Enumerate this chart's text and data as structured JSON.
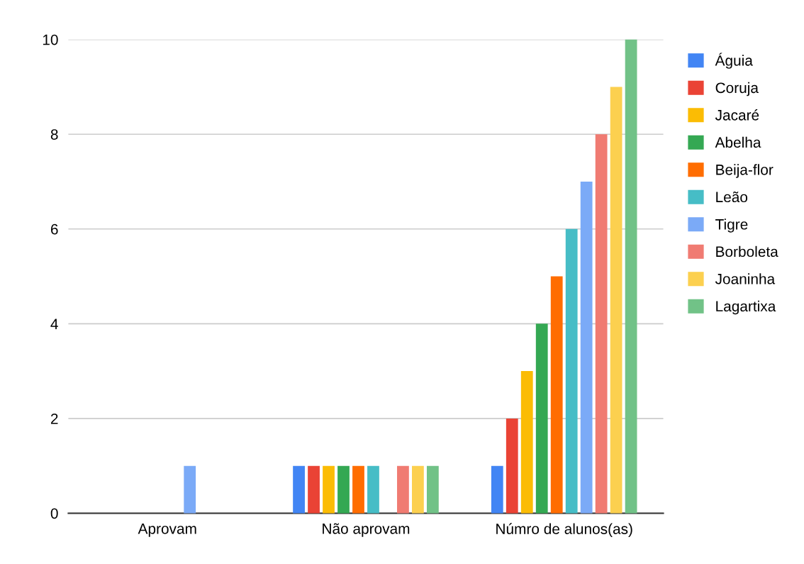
{
  "chart_data": {
    "type": "bar",
    "categories": [
      "Aprovam",
      "Não aprovam",
      "Númro de alunos(as)"
    ],
    "series": [
      {
        "name": "Águia",
        "color": "#4285f4",
        "values": [
          0,
          1,
          1
        ]
      },
      {
        "name": "Coruja",
        "color": "#ea4335",
        "values": [
          0,
          1,
          2
        ]
      },
      {
        "name": "Jacaré",
        "color": "#fbbc04",
        "values": [
          0,
          1,
          3
        ]
      },
      {
        "name": "Abelha",
        "color": "#34a853",
        "values": [
          0,
          1,
          4
        ]
      },
      {
        "name": "Beija-flor",
        "color": "#ff6d01",
        "values": [
          0,
          1,
          5
        ]
      },
      {
        "name": "Leão",
        "color": "#46bdc6",
        "values": [
          0,
          1,
          6
        ]
      },
      {
        "name": "Tigre",
        "color": "#7baaf7",
        "values": [
          1,
          0,
          7
        ]
      },
      {
        "name": "Borboleta",
        "color": "#f07b72",
        "values": [
          0,
          1,
          8
        ]
      },
      {
        "name": "Joaninha",
        "color": "#fcd04f",
        "values": [
          0,
          1,
          9
        ]
      },
      {
        "name": "Lagartixa",
        "color": "#71c287",
        "values": [
          0,
          1,
          10
        ]
      }
    ],
    "ylim": [
      0,
      10
    ],
    "yticks": [
      0,
      2,
      4,
      6,
      8,
      10
    ],
    "grid": "y",
    "legend": "top right"
  }
}
